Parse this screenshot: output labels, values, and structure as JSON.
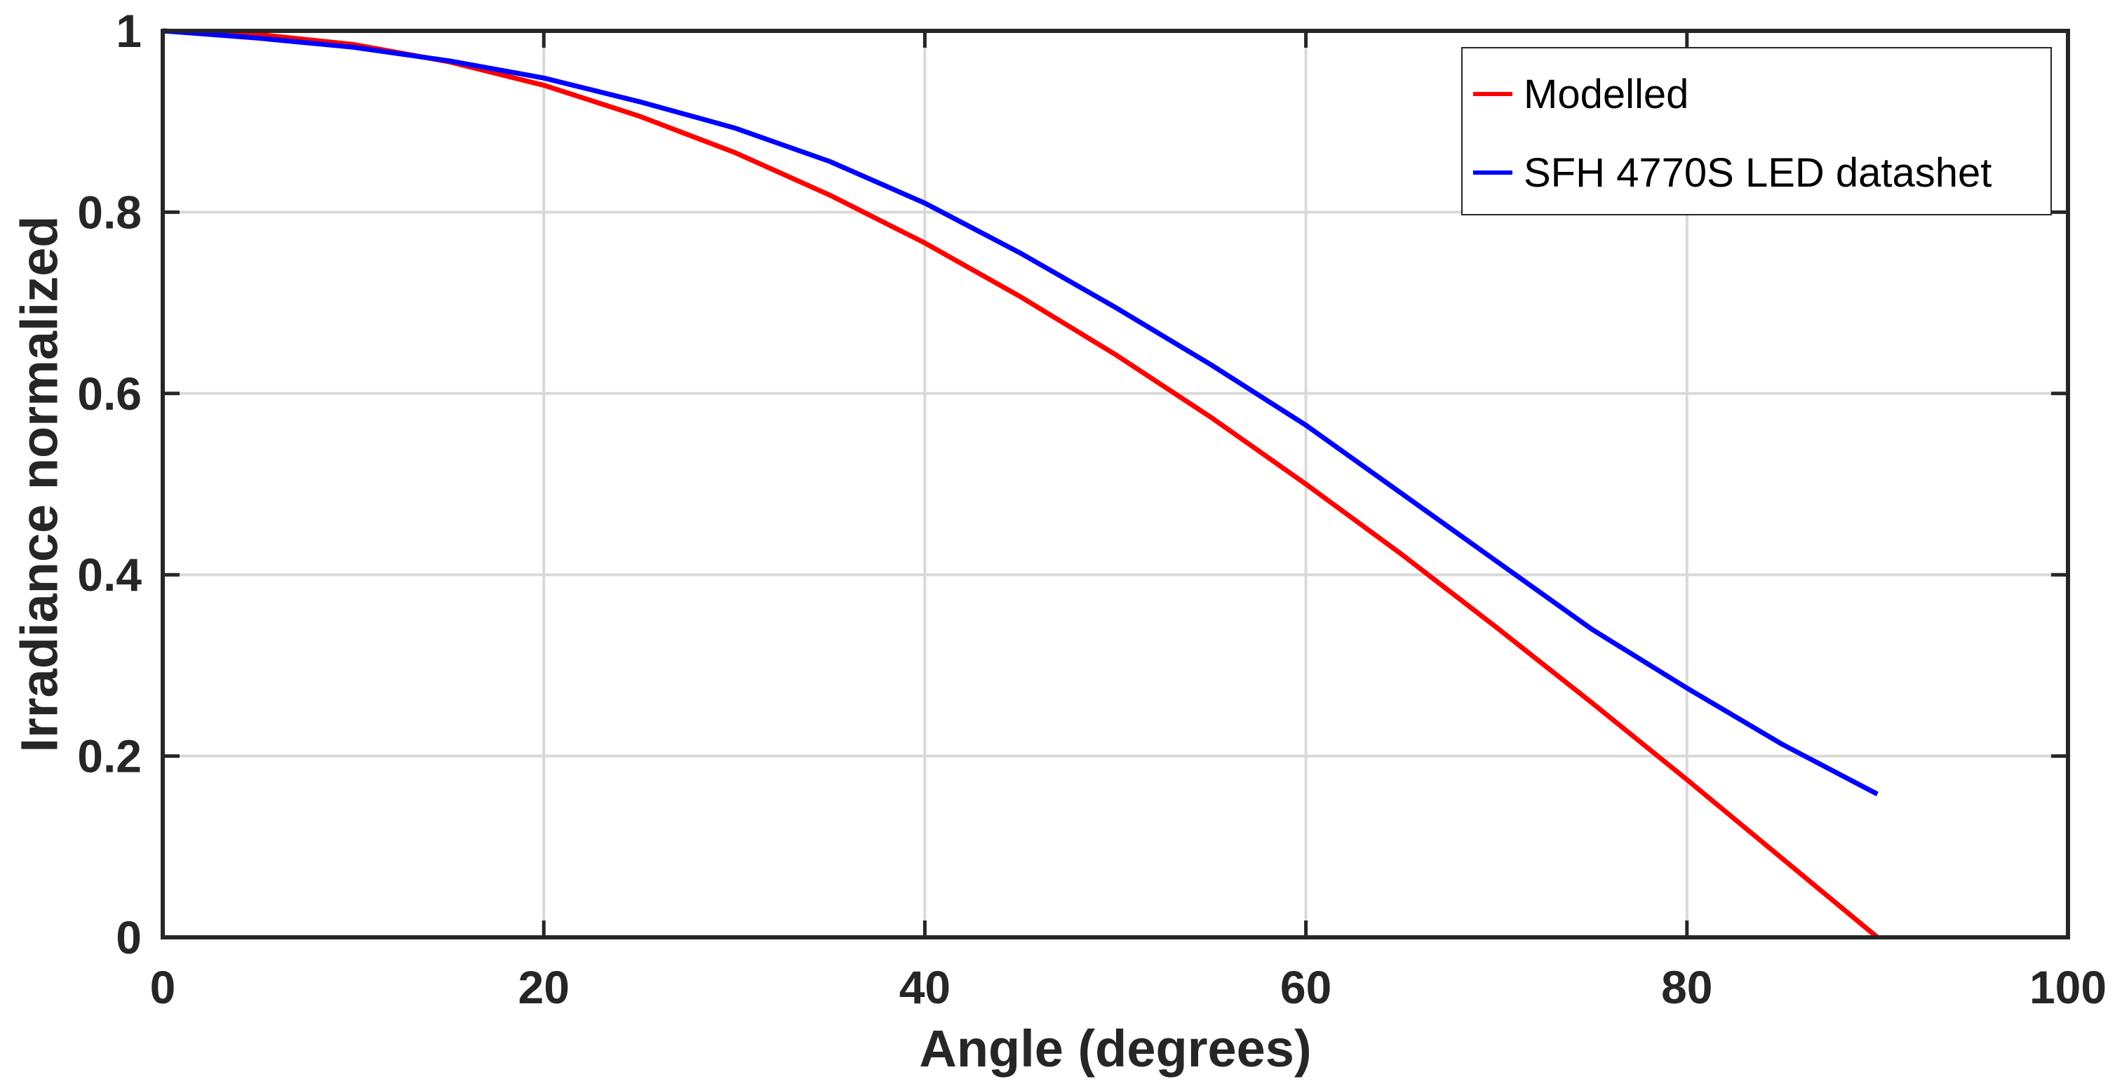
{
  "chart_data": {
    "type": "line",
    "title": "",
    "xlabel": "Angle (degrees)",
    "ylabel": "Irradiance normalized",
    "xlim": [
      0,
      100
    ],
    "ylim": [
      0,
      1
    ],
    "xticks": [
      0,
      20,
      40,
      60,
      80,
      100
    ],
    "yticks": [
      0,
      0.2,
      0.4,
      0.6,
      0.8,
      1
    ],
    "xtick_labels": [
      "0",
      "20",
      "40",
      "60",
      "80",
      "100"
    ],
    "ytick_labels": [
      "0",
      "0.2",
      "0.4",
      "0.6",
      "0.8",
      "1"
    ],
    "grid": true,
    "legend_position": "top-right",
    "series": [
      {
        "name": "Modelled",
        "color": "#ff0000",
        "x": [
          0,
          5,
          10,
          15,
          20,
          25,
          30,
          35,
          40,
          45,
          50,
          55,
          60,
          65,
          70,
          75,
          80,
          85,
          90
        ],
        "y": [
          1.0,
          0.996,
          0.985,
          0.966,
          0.94,
          0.906,
          0.866,
          0.819,
          0.766,
          0.707,
          0.643,
          0.574,
          0.5,
          0.423,
          0.342,
          0.259,
          0.174,
          0.087,
          0.0
        ]
      },
      {
        "name": "SFH 4770S LED datashet",
        "color": "#0000ff",
        "x": [
          0,
          5,
          10,
          15,
          20,
          25,
          30,
          35,
          40,
          45,
          50,
          55,
          60,
          65,
          70,
          75,
          80,
          85,
          90
        ],
        "y": [
          1.0,
          0.992,
          0.982,
          0.967,
          0.948,
          0.922,
          0.893,
          0.856,
          0.81,
          0.755,
          0.695,
          0.632,
          0.565,
          0.49,
          0.415,
          0.34,
          0.275,
          0.213,
          0.158
        ]
      }
    ]
  }
}
